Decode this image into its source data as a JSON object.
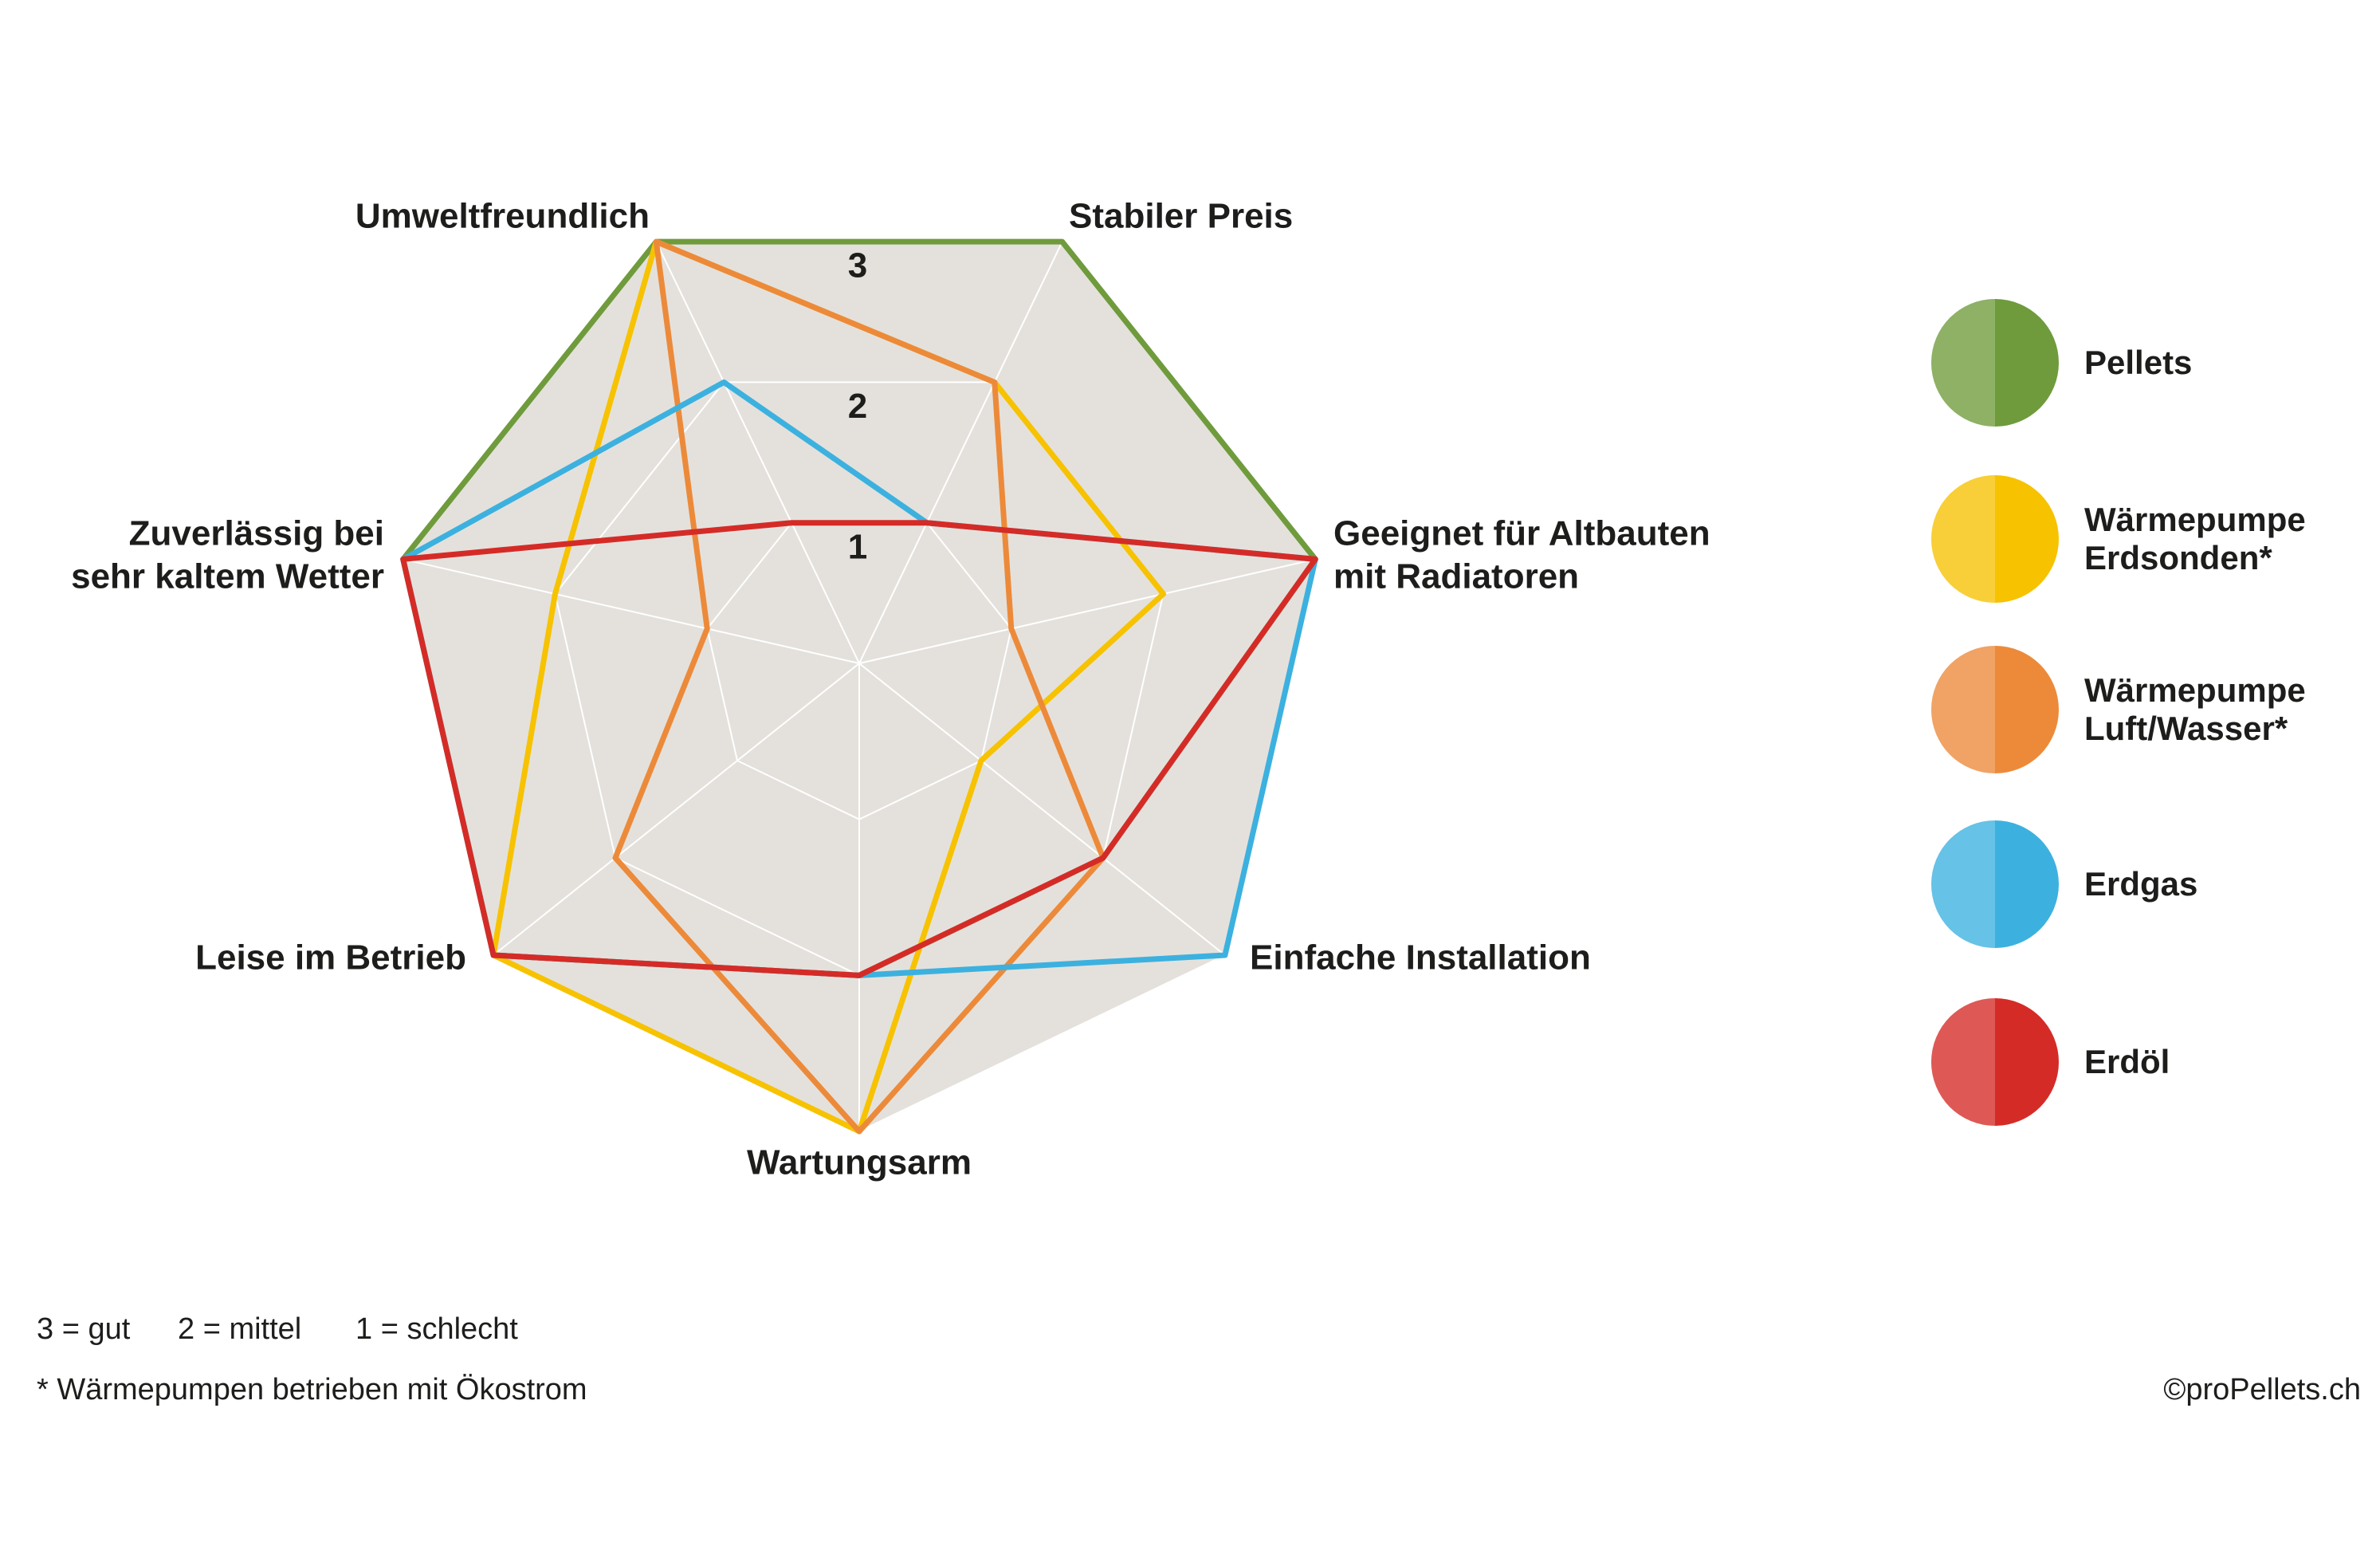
{
  "chart_data": {
    "type": "radar",
    "categories": [
      [
        "Umweltfreundlich"
      ],
      [
        "Stabiler Preis"
      ],
      [
        "Geeignet für Altbauten",
        "mit Radiatoren"
      ],
      [
        "Einfache Installation"
      ],
      [
        "Wartungsarm"
      ],
      [
        "Leise im Betrieb"
      ],
      [
        "Zuverlässig bei",
        "sehr kaltem Wetter"
      ]
    ],
    "rlim": [
      0,
      3
    ],
    "rticks": [
      1,
      2,
      3
    ],
    "grid": true,
    "legend": "right",
    "series": [
      {
        "name": "Pellets",
        "color": "#6f9b3c",
        "values": [
          3,
          3,
          3,
          2,
          2,
          3,
          3
        ]
      },
      {
        "name": "Wärmepumpe Erdsonden*",
        "color": "#f7c200",
        "values": [
          3,
          2,
          2,
          1,
          3,
          3,
          2
        ]
      },
      {
        "name": "Wärmepumpe Luft/Wasser*",
        "color": "#ec8a3a",
        "values": [
          3,
          2,
          1,
          2,
          3,
          2,
          1
        ]
      },
      {
        "name": "Erdgas",
        "color": "#3cb1df",
        "values": [
          2,
          1,
          3,
          3,
          2,
          3,
          3
        ]
      },
      {
        "name": "Erdöl",
        "color": "#d52b27",
        "values": [
          1,
          1,
          3,
          2,
          2,
          3,
          3
        ]
      }
    ],
    "notes": [
      "3 = gut",
      "2 = mittel",
      "1 = schlecht"
    ],
    "footnote": "* Wärmepumpen betrieben mit Ökostrom",
    "credit": "©proPellets.ch"
  }
}
